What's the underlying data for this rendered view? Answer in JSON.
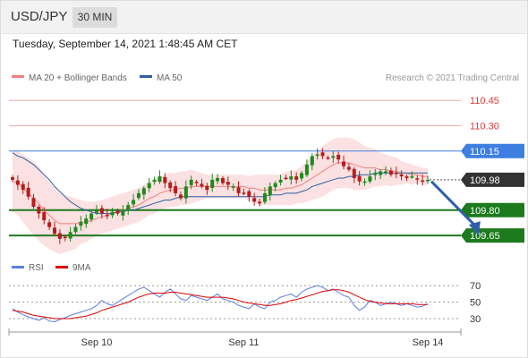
{
  "header": {
    "symbol": "USD/JPY",
    "timeframe": "30 MIN"
  },
  "datetime": "Tuesday, September 14, 2021 1:48:45 AM CET",
  "copyright": "Research © 2021 Trading Central",
  "colors": {
    "resistance": "#e53935",
    "pivot": "#3d7fe0",
    "support": "#1d7a1d",
    "last": "#333333",
    "ma20": "#f08080",
    "ma50": "#2d5fa5",
    "bands": "#fadcdc",
    "up": "#1d8a1d",
    "down": "#b71c1c",
    "arrow": "#2d5fa5",
    "rsi": "#5b7fe0",
    "rsi_ma": "#e00000"
  },
  "chart_data": [
    {
      "type": "candlestick",
      "legend": [
        {
          "label": "MA 20 + Bollinger Bands",
          "color": "#f08080"
        },
        {
          "label": "MA 50",
          "color": "#2d5fa5"
        }
      ],
      "ylim": [
        109.555,
        110.52
      ],
      "levels": [
        {
          "value": 110.45,
          "label": "110.45",
          "kind": "resistance"
        },
        {
          "value": 110.3,
          "label": "110.30",
          "kind": "resistance"
        },
        {
          "value": 110.15,
          "label": "110.15",
          "kind": "pivot"
        },
        {
          "value": 109.98,
          "label": "109.98",
          "kind": "last"
        },
        {
          "value": 109.8,
          "label": "109.80",
          "kind": "support"
        },
        {
          "value": 109.65,
          "label": "109.65",
          "kind": "support"
        }
      ],
      "x_ticks": [
        {
          "label": "Sep 10",
          "index": 16
        },
        {
          "label": "Sep 11",
          "index": 44
        },
        {
          "label": "Sep 14",
          "index": 79
        }
      ],
      "price_path": [
        109.98,
        109.95,
        109.92,
        109.88,
        109.82,
        109.78,
        109.74,
        109.7,
        109.66,
        109.63,
        109.64,
        109.67,
        109.7,
        109.73,
        109.75,
        109.78,
        109.8,
        109.78,
        109.77,
        109.79,
        109.78,
        109.8,
        109.83,
        109.86,
        109.9,
        109.93,
        109.96,
        109.98,
        110.0,
        109.96,
        109.93,
        109.9,
        109.87,
        109.94,
        109.98,
        109.96,
        109.94,
        109.92,
        109.98,
        109.99,
        109.96,
        109.95,
        109.94,
        109.9,
        109.9,
        109.88,
        109.85,
        109.84,
        109.9,
        109.94,
        109.96,
        109.98,
        109.99,
        110.0,
        109.98,
        110.02,
        110.07,
        110.12,
        110.13,
        110.12,
        110.11,
        110.12,
        110.1,
        110.06,
        110.04,
        109.99,
        109.97,
        109.97,
        110.0,
        110.02,
        110.03,
        110.03,
        110.01,
        110.02,
        110.0,
        109.99,
        110.0,
        109.98,
        109.97,
        109.98
      ],
      "ma20": [
        109.97,
        109.96,
        109.93,
        109.9,
        109.87,
        109.84,
        109.8,
        109.77,
        109.74,
        109.72,
        109.72,
        109.72,
        109.72,
        109.73,
        109.73,
        109.74,
        109.75,
        109.76,
        109.77,
        109.78,
        109.79,
        109.8,
        109.81,
        109.82,
        109.83,
        109.85,
        109.87,
        109.88,
        109.9,
        109.91,
        109.92,
        109.92,
        109.93,
        109.93,
        109.94,
        109.94,
        109.94,
        109.94,
        109.94,
        109.94,
        109.94,
        109.94,
        109.94,
        109.94,
        109.94,
        109.93,
        109.93,
        109.92,
        109.92,
        109.92,
        109.92,
        109.92,
        109.93,
        109.93,
        109.94,
        109.95,
        109.97,
        109.99,
        110.01,
        110.03,
        110.05,
        110.07,
        110.08,
        110.08,
        110.08,
        110.07,
        110.06,
        110.05,
        110.05,
        110.05,
        110.04,
        110.04,
        110.03,
        110.03,
        110.02,
        110.02,
        110.01,
        110.01,
        110.0,
        110.0
      ],
      "ma50": [
        110.14,
        110.12,
        110.11,
        110.09,
        110.07,
        110.04,
        110.01,
        109.98,
        109.94,
        109.91,
        109.88,
        109.85,
        109.83,
        109.81,
        109.8,
        109.79,
        109.78,
        109.78,
        109.78,
        109.78,
        109.79,
        109.79,
        109.8,
        109.8,
        109.81,
        109.82,
        109.83,
        109.84,
        109.85,
        109.86,
        109.86,
        109.87,
        109.88,
        109.88,
        109.88,
        109.88,
        109.88,
        109.88,
        109.88,
        109.88,
        109.88,
        109.88,
        109.88,
        109.88,
        109.88,
        109.88,
        109.88,
        109.88,
        109.88,
        109.89,
        109.89,
        109.89,
        109.9,
        109.9,
        109.9,
        109.91,
        109.92,
        109.94,
        109.95,
        109.96,
        109.97,
        109.98,
        109.99,
        109.99,
        110.0,
        110.0,
        110.01,
        110.01,
        110.01,
        110.02,
        110.02,
        110.02,
        110.02,
        110.02,
        110.02,
        110.02,
        110.02,
        110.02,
        110.02,
        110.02
      ],
      "band_width": [
        0.18,
        0.19,
        0.2,
        0.21,
        0.22,
        0.22,
        0.21,
        0.2,
        0.19,
        0.18,
        0.17,
        0.16,
        0.15,
        0.13,
        0.12,
        0.11,
        0.1,
        0.1,
        0.1,
        0.1,
        0.1,
        0.1,
        0.1,
        0.1,
        0.1,
        0.1,
        0.1,
        0.1,
        0.1,
        0.1,
        0.1,
        0.1,
        0.1,
        0.1,
        0.1,
        0.09,
        0.08,
        0.07,
        0.07,
        0.07,
        0.07,
        0.07,
        0.07,
        0.07,
        0.07,
        0.07,
        0.08,
        0.09,
        0.09,
        0.09,
        0.09,
        0.09,
        0.1,
        0.1,
        0.1,
        0.11,
        0.12,
        0.13,
        0.14,
        0.15,
        0.15,
        0.15,
        0.15,
        0.15,
        0.15,
        0.15,
        0.14,
        0.13,
        0.12,
        0.11,
        0.1,
        0.09,
        0.09,
        0.08,
        0.07,
        0.06,
        0.06,
        0.05,
        0.05,
        0.05
      ],
      "forecast_arrow": {
        "from": 109.97,
        "to": 109.65,
        "bars_ahead": 9
      }
    },
    {
      "type": "line",
      "legend": [
        {
          "label": "RSI",
          "color": "#5b7fe0"
        },
        {
          "label": "9MA",
          "color": "#e00000"
        }
      ],
      "ylim": [
        18,
        80
      ],
      "reference_lines": [
        {
          "value": 70,
          "label": "70"
        },
        {
          "value": 50,
          "label": "50"
        },
        {
          "value": 30,
          "label": "30"
        }
      ],
      "rsi": [
        42,
        38,
        35,
        32,
        30,
        28,
        31,
        27,
        26,
        29,
        31,
        34,
        36,
        38,
        40,
        42,
        46,
        52,
        48,
        46,
        50,
        54,
        58,
        62,
        66,
        68,
        64,
        60,
        56,
        62,
        66,
        60,
        54,
        52,
        58,
        56,
        54,
        52,
        56,
        60,
        54,
        52,
        50,
        46,
        44,
        42,
        48,
        44,
        42,
        50,
        52,
        56,
        58,
        60,
        56,
        62,
        66,
        68,
        70,
        68,
        64,
        66,
        62,
        58,
        56,
        46,
        40,
        44,
        52,
        50,
        46,
        48,
        50,
        48,
        46,
        48,
        46,
        44,
        45,
        48
      ],
      "rsi_9ma": [
        40,
        39,
        38,
        36,
        34,
        33,
        32,
        31,
        30,
        30,
        30,
        30,
        31,
        32,
        33,
        35,
        37,
        40,
        42,
        44,
        46,
        48,
        50,
        53,
        56,
        58,
        60,
        61,
        61,
        61,
        62,
        62,
        61,
        60,
        59,
        58,
        57,
        56,
        56,
        56,
        56,
        55,
        54,
        52,
        50,
        49,
        48,
        47,
        46,
        46,
        47,
        48,
        50,
        52,
        53,
        55,
        57,
        59,
        61,
        63,
        64,
        65,
        65,
        64,
        62,
        59,
        56,
        53,
        51,
        50,
        49,
        48,
        48,
        48,
        48,
        48,
        48,
        47,
        47,
        47
      ]
    }
  ]
}
